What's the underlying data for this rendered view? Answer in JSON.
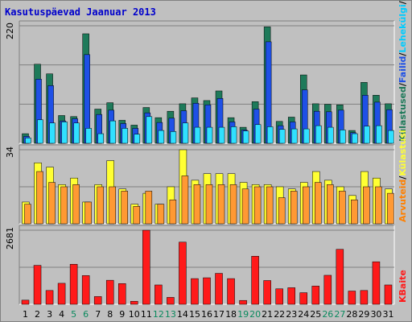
{
  "title": "Kasutuspäevad Jaanuar 2013",
  "colors": {
    "background": "#c0c0c0",
    "plot_background": "#c0c0c0",
    "grid": "#808080",
    "visits": "#1e7a5a",
    "files": "#1e50e6",
    "pages": "#30e0ff",
    "pages_legend": "#00ccff",
    "hits_bar": "#ffff33",
    "hosts": "#ff9933",
    "hosts_legend": "#ff8000",
    "kbytes": "#ff1a1a",
    "weekend_label": "#0b8a5e",
    "weekday_label": "#000000"
  },
  "chart_data": [
    {
      "type": "bar",
      "panel": "top",
      "ymax_label": "220",
      "ylim": [
        0,
        220
      ],
      "legend": [
        "Külastused",
        "Failid",
        "Lehekülgi",
        "Pöördumisi"
      ],
      "legend_separator": "/",
      "categories": [
        "1",
        "2",
        "3",
        "4",
        "5",
        "6",
        "7",
        "8",
        "9",
        "10",
        "11",
        "12",
        "13",
        "14",
        "15",
        "16",
        "17",
        "18",
        "19",
        "20",
        "21",
        "22",
        "23",
        "24",
        "25",
        "26",
        "27",
        "28",
        "29",
        "30",
        "31"
      ],
      "series": [
        {
          "name": "Pöördumisi",
          "values": [
            18,
            148,
            130,
            52,
            50,
            205,
            64,
            76,
            43,
            34,
            67,
            48,
            60,
            74,
            85,
            80,
            98,
            48,
            30,
            78,
            218,
            41,
            49,
            128,
            74,
            73,
            72,
            24,
            114,
            90,
            74
          ]
        },
        {
          "name": "Faile",
          "values": [
            13,
            120,
            108,
            42,
            46,
            166,
            54,
            62,
            37,
            28,
            57,
            39,
            47,
            61,
            75,
            72,
            84,
            40,
            25,
            64,
            190,
            33,
            40,
            100,
            60,
            59,
            62,
            20,
            90,
            77,
            63
          ]
        },
        {
          "name": "Lehekülgi",
          "values": [
            10,
            44,
            38,
            40,
            38,
            28,
            18,
            42,
            28,
            17,
            50,
            24,
            22,
            38,
            30,
            30,
            30,
            31,
            23,
            35,
            31,
            26,
            27,
            27,
            33,
            30,
            25,
            18,
            32,
            33,
            24
          ]
        }
      ]
    },
    {
      "type": "bar",
      "panel": "middle",
      "ymax_label": "34",
      "ylim": [
        0,
        34
      ],
      "legend": [
        "Arvuteid",
        "Külastusi"
      ],
      "legend_separator": "/",
      "categories": [
        "1",
        "2",
        "3",
        "4",
        "5",
        "6",
        "7",
        "8",
        "9",
        "10",
        "11",
        "12",
        "13",
        "14",
        "15",
        "16",
        "17",
        "18",
        "19",
        "20",
        "21",
        "22",
        "23",
        "24",
        "25",
        "26",
        "27",
        "28",
        "29",
        "30",
        "31"
      ],
      "series": [
        {
          "name": "Külastusi",
          "values": [
            10,
            28,
            26,
            18,
            21,
            10,
            18,
            29,
            16,
            9,
            14,
            9,
            17,
            34,
            20,
            23,
            23,
            23,
            19,
            18,
            18,
            17,
            16,
            19,
            24,
            20,
            17,
            13,
            24,
            21,
            16
          ]
        },
        {
          "name": "Arvuteid",
          "values": [
            9,
            24,
            19,
            17,
            18,
            10,
            17,
            17,
            15,
            8,
            15,
            9,
            11,
            22,
            18,
            18,
            18,
            18,
            16,
            17,
            17,
            12,
            15,
            17,
            19,
            18,
            15,
            11,
            17,
            17,
            14
          ]
        }
      ]
    },
    {
      "type": "bar",
      "panel": "bottom",
      "ymax_label": "2681",
      "ylim": [
        0,
        2681
      ],
      "legend": [
        "KBaite"
      ],
      "categories": [
        "1",
        "2",
        "3",
        "4",
        "5",
        "6",
        "7",
        "8",
        "9",
        "10",
        "11",
        "12",
        "13",
        "14",
        "15",
        "16",
        "17",
        "18",
        "19",
        "20",
        "21",
        "22",
        "23",
        "24",
        "25",
        "26",
        "27",
        "28",
        "29",
        "30",
        "31"
      ],
      "series": [
        {
          "name": "KBaite",
          "values": [
            150,
            1410,
            500,
            760,
            1450,
            1040,
            280,
            870,
            750,
            110,
            2680,
            700,
            250,
            2250,
            930,
            960,
            1120,
            930,
            140,
            1740,
            860,
            560,
            600,
            420,
            660,
            1050,
            1990,
            480,
            500,
            1540,
            700
          ]
        }
      ]
    }
  ],
  "weekend_days": [
    "5",
    "6",
    "12",
    "13",
    "19",
    "20",
    "26",
    "27"
  ]
}
